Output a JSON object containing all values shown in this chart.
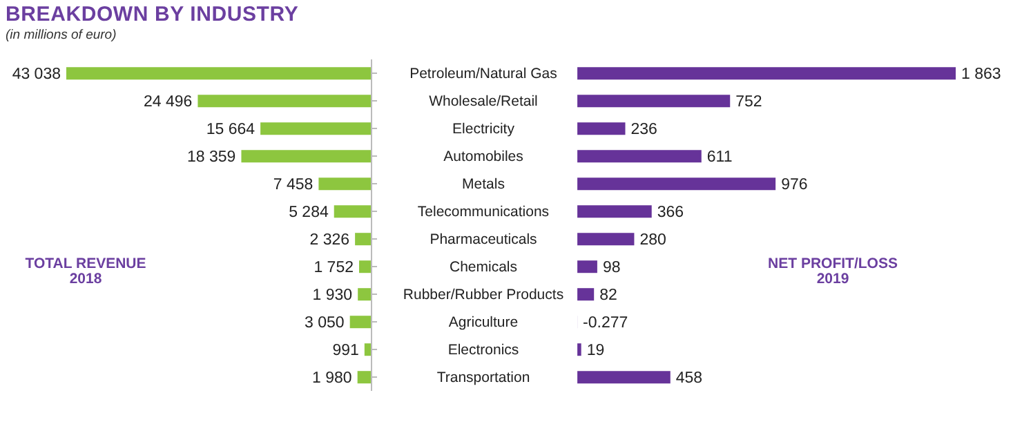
{
  "chart_data": [
    {
      "type": "bar",
      "orientation": "horizontal",
      "title": "BREAKDOWN BY INDUSTRY",
      "subtitle": "(in millions of euro)",
      "annotations": [
        "TOTAL REVENUE 2018"
      ],
      "categories": [
        "Petroleum/Natural Gas",
        "Wholesale/Retail",
        "Electricity",
        "Automobiles",
        "Metals",
        "Telecommunications",
        "Pharmaceuticals",
        "Chemicals",
        "Rubber/Rubber Products",
        "Agriculture",
        "Electronics",
        "Transportation"
      ],
      "values": [
        43038,
        24496,
        15664,
        18359,
        7458,
        5284,
        2326,
        1752,
        1930,
        3050,
        991,
        1980
      ],
      "value_labels": [
        "43 038",
        "24 496",
        "15 664",
        "18 359",
        "7 458",
        "5 284",
        "2 326",
        "1 752",
        "1 930",
        "3 050",
        "991",
        "1 980"
      ],
      "color": "#8dc63f"
    },
    {
      "type": "bar",
      "orientation": "horizontal",
      "annotations": [
        "NET PROFIT/LOSS 2019"
      ],
      "values": [
        1863,
        752,
        236,
        611,
        976,
        366,
        280,
        98,
        82,
        -0.277,
        19,
        458
      ],
      "value_labels": [
        "1 863",
        "752",
        "236",
        "611",
        "976",
        "366",
        "280",
        "98",
        "82",
        "-0.277",
        "19",
        "458"
      ],
      "color": "#663399"
    }
  ]
}
